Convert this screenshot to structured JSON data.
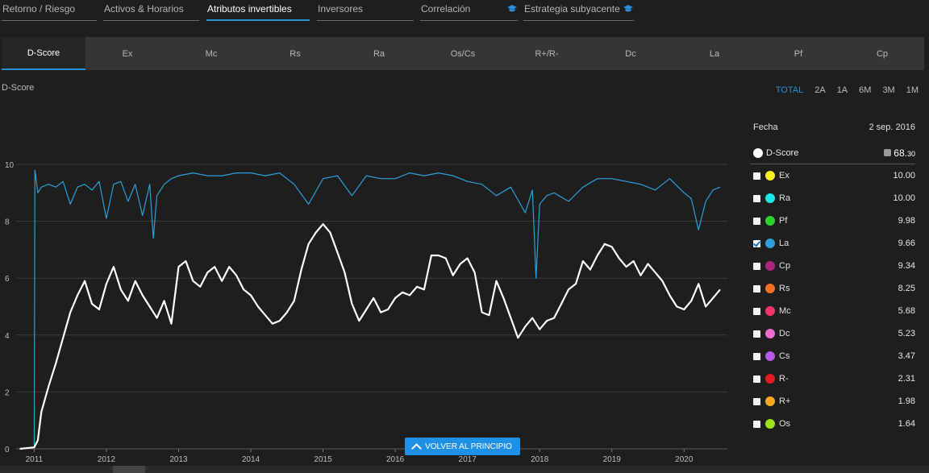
{
  "top_tabs": [
    {
      "label": "Retorno / Riesgo"
    },
    {
      "label": "Activos & Horarios"
    },
    {
      "label": "Atributos invertibles"
    },
    {
      "label": "Inversores"
    },
    {
      "label": "Correlación"
    },
    {
      "label": "Estrategia subyacente"
    }
  ],
  "sub_tabs": [
    "D-Score",
    "Ex",
    "Mc",
    "Rs",
    "Ra",
    "Os/Cs",
    "R+/R-",
    "Dc",
    "La",
    "Pf",
    "Cp"
  ],
  "chart_title": "D-Score",
  "ranges": [
    "TOTAL",
    "2A",
    "1A",
    "6M",
    "3M",
    "1M"
  ],
  "legend": {
    "date_label": "Fecha",
    "date_value": "2 sep. 2016",
    "main": {
      "name": "D-Score",
      "value_int": "68.",
      "value_dec": "30",
      "color": "#ffffff"
    },
    "rows": [
      {
        "name": "Ex",
        "value": "10.00",
        "color": "#f7ef1e",
        "checked": false
      },
      {
        "name": "Ra",
        "value": "10.00",
        "color": "#19e6e6",
        "checked": false
      },
      {
        "name": "Pf",
        "value": "9.98",
        "color": "#2bd42b",
        "checked": false
      },
      {
        "name": "La",
        "value": "9.66",
        "color": "#2d9fd9",
        "checked": true
      },
      {
        "name": "Cp",
        "value": "9.34",
        "color": "#b0237f",
        "checked": false
      },
      {
        "name": "Rs",
        "value": "8.25",
        "color": "#f37021",
        "checked": false
      },
      {
        "name": "Mc",
        "value": "5.68",
        "color": "#f5336b",
        "checked": false
      },
      {
        "name": "Dc",
        "value": "5.23",
        "color": "#f06bd0",
        "checked": false
      },
      {
        "name": "Cs",
        "value": "3.47",
        "color": "#b657e8",
        "checked": false
      },
      {
        "name": "R-",
        "value": "2.31",
        "color": "#e31b23",
        "checked": false
      },
      {
        "name": "R+",
        "value": "1.98",
        "color": "#f7a81b",
        "checked": false
      },
      {
        "name": "Os",
        "value": "1.64",
        "color": "#9be317",
        "checked": false
      }
    ]
  },
  "back_button": "VOLVER AL PRINCIPIO",
  "chart_data": {
    "type": "line",
    "title": "D-Score",
    "xlabel": "",
    "ylabel": "",
    "ylim": [
      0,
      10
    ],
    "yticks": [
      0,
      2,
      4,
      6,
      8,
      10
    ],
    "xlim": [
      2010.75,
      2020.6
    ],
    "xticks": [
      "2011",
      "2012",
      "2013",
      "2014",
      "2015",
      "2016",
      "2017",
      "2018",
      "2019",
      "2020"
    ],
    "grid": true,
    "series": [
      {
        "name": "D-Score",
        "color": "#ffffff",
        "x": [
          2010.8,
          2011.0,
          2011.05,
          2011.1,
          2011.2,
          2011.3,
          2011.4,
          2011.5,
          2011.6,
          2011.7,
          2011.8,
          2011.9,
          2012.0,
          2012.1,
          2012.2,
          2012.3,
          2012.4,
          2012.5,
          2012.6,
          2012.7,
          2012.8,
          2012.9,
          2013.0,
          2013.1,
          2013.2,
          2013.3,
          2013.4,
          2013.5,
          2013.6,
          2013.7,
          2013.8,
          2013.9,
          2014.0,
          2014.1,
          2014.2,
          2014.3,
          2014.4,
          2014.5,
          2014.6,
          2014.7,
          2014.8,
          2014.9,
          2015.0,
          2015.1,
          2015.2,
          2015.3,
          2015.4,
          2015.5,
          2015.6,
          2015.7,
          2015.8,
          2015.9,
          2016.0,
          2016.1,
          2016.2,
          2016.3,
          2016.4,
          2016.5,
          2016.6,
          2016.7,
          2016.8,
          2016.9,
          2017.0,
          2017.1,
          2017.2,
          2017.3,
          2017.4,
          2017.5,
          2017.6,
          2017.7,
          2017.8,
          2017.9,
          2018.0,
          2018.1,
          2018.2,
          2018.3,
          2018.4,
          2018.5,
          2018.6,
          2018.7,
          2018.8,
          2018.9,
          2019.0,
          2019.1,
          2019.2,
          2019.3,
          2019.4,
          2019.5,
          2019.6,
          2019.7,
          2019.8,
          2019.9,
          2020.0,
          2020.1,
          2020.2,
          2020.3,
          2020.4,
          2020.5
        ],
        "values": [
          0.0,
          0.05,
          0.3,
          1.3,
          2.2,
          3.0,
          3.9,
          4.8,
          5.4,
          5.9,
          5.1,
          4.9,
          5.8,
          6.4,
          5.6,
          5.2,
          5.9,
          5.4,
          5.0,
          4.6,
          5.2,
          4.4,
          6.4,
          6.6,
          5.9,
          5.7,
          6.2,
          6.4,
          5.9,
          6.4,
          6.1,
          5.6,
          5.4,
          5.0,
          4.7,
          4.4,
          4.5,
          4.8,
          5.2,
          6.3,
          7.2,
          7.6,
          7.9,
          7.6,
          6.9,
          6.2,
          5.1,
          4.5,
          4.9,
          5.3,
          4.8,
          4.9,
          5.3,
          5.5,
          5.4,
          5.7,
          5.6,
          6.8,
          6.8,
          6.7,
          6.1,
          6.5,
          6.7,
          6.2,
          4.8,
          4.7,
          5.9,
          5.3,
          4.6,
          3.9,
          4.3,
          4.6,
          4.2,
          4.5,
          4.6,
          5.1,
          5.6,
          5.8,
          6.6,
          6.3,
          6.8,
          7.2,
          7.1,
          6.7,
          6.4,
          6.6,
          6.1,
          6.5,
          6.2,
          5.9,
          5.4,
          5.0,
          4.9,
          5.2,
          5.8,
          5.0,
          5.3,
          5.6
        ]
      },
      {
        "name": "La",
        "color": "#2d9fd9",
        "x": [
          2010.8,
          2011.0,
          2011.01,
          2011.02,
          2011.05,
          2011.1,
          2011.2,
          2011.3,
          2011.4,
          2011.5,
          2011.6,
          2011.7,
          2011.8,
          2011.9,
          2012.0,
          2012.1,
          2012.2,
          2012.3,
          2012.4,
          2012.5,
          2012.6,
          2012.65,
          2012.7,
          2012.8,
          2012.9,
          2013.0,
          2013.2,
          2013.4,
          2013.6,
          2013.8,
          2014.0,
          2014.2,
          2014.4,
          2014.6,
          2014.8,
          2015.0,
          2015.2,
          2015.4,
          2015.6,
          2015.8,
          2016.0,
          2016.2,
          2016.4,
          2016.6,
          2016.8,
          2017.0,
          2017.2,
          2017.4,
          2017.6,
          2017.8,
          2017.9,
          2017.95,
          2018.0,
          2018.1,
          2018.2,
          2018.4,
          2018.6,
          2018.8,
          2019.0,
          2019.2,
          2019.4,
          2019.6,
          2019.8,
          2020.0,
          2020.1,
          2020.2,
          2020.3,
          2020.4,
          2020.5
        ],
        "values": [
          0.0,
          0.05,
          9.8,
          9.6,
          9.0,
          9.2,
          9.3,
          9.2,
          9.4,
          8.6,
          9.2,
          9.3,
          9.1,
          9.4,
          8.1,
          9.3,
          9.4,
          8.7,
          9.3,
          8.2,
          9.3,
          7.4,
          8.9,
          9.3,
          9.5,
          9.6,
          9.7,
          9.6,
          9.6,
          9.7,
          9.7,
          9.6,
          9.7,
          9.3,
          8.6,
          9.5,
          9.6,
          8.9,
          9.6,
          9.5,
          9.5,
          9.7,
          9.6,
          9.7,
          9.6,
          9.4,
          9.3,
          8.9,
          9.2,
          8.3,
          9.1,
          6.0,
          8.6,
          8.9,
          9.0,
          8.7,
          9.2,
          9.5,
          9.5,
          9.4,
          9.3,
          9.1,
          9.5,
          9.0,
          8.8,
          7.7,
          8.7,
          9.1,
          9.2
        ]
      }
    ]
  }
}
